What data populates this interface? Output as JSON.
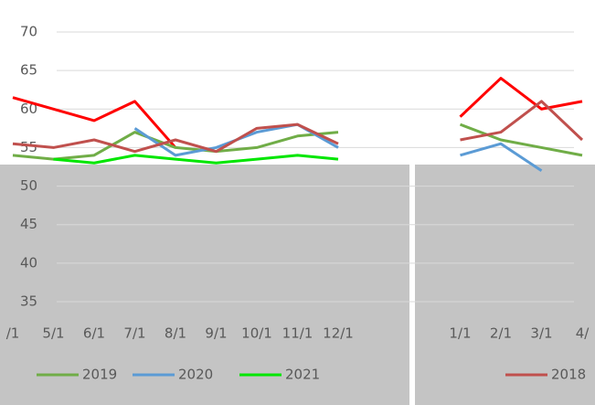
{
  "chart_data": {
    "type": "line",
    "categories": [
      "/1",
      "5/1",
      "6/1",
      "7/1",
      "8/1",
      "9/1",
      "10/1",
      "11/1",
      "12/1",
      null,
      null,
      "1/1",
      "2/1",
      "3/1",
      "4/"
    ],
    "series": [
      {
        "color": "#ff0000",
        "values": [
          61.5,
          60,
          58.5,
          61,
          55,
          null,
          null,
          null,
          null,
          null,
          null,
          59,
          64,
          60,
          61
        ]
      },
      {
        "name": "2019",
        "color": "#70ad47",
        "values": [
          54,
          53.5,
          54,
          57,
          55,
          54.5,
          55,
          56.5,
          57,
          null,
          null,
          58,
          56,
          55,
          54
        ]
      },
      {
        "name": "2020",
        "color": "#5b9bd5",
        "values": [
          null,
          null,
          null,
          57.5,
          54,
          55,
          57,
          58,
          55,
          null,
          null,
          54,
          55.5,
          52,
          null
        ]
      },
      {
        "name": "2021",
        "color": "#00e600",
        "values": [
          null,
          53.5,
          53,
          54,
          53.5,
          53,
          53.5,
          54,
          53.5,
          null,
          null,
          null,
          null,
          null,
          null
        ]
      },
      {
        "name": "2018",
        "color": "#c0504d",
        "values": [
          55.5,
          55,
          56,
          54.5,
          56,
          54.5,
          57.5,
          58,
          55.5,
          null,
          null,
          56,
          57,
          61,
          56
        ]
      }
    ],
    "ylim": [
      35,
      70
    ],
    "yticks": [
      35,
      40,
      45,
      50,
      55,
      60,
      65,
      70
    ],
    "grid": true
  }
}
